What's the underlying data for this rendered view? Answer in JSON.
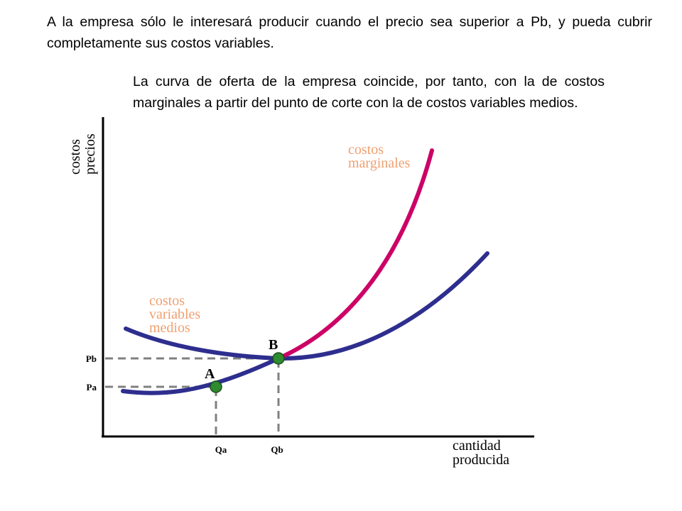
{
  "text": {
    "paragraph1": "A la empresa sólo le interesará producir cuando el precio sea superior a Pb, y pueda cubrir completamente sus costos variables.",
    "paragraph2": "La curva de oferta de la empresa coincide, por tanto, con la de costos marginales a partir del punto de corte con la de costos variables medios."
  },
  "diagram": {
    "y_axis_label": [
      "costos",
      "precios"
    ],
    "x_axis_label": [
      "cantidad",
      "producida"
    ],
    "curve_labels": {
      "marginal_cost": [
        "costos",
        "marginales"
      ],
      "average_variable_cost": [
        "costos",
        "variables",
        "medios"
      ]
    },
    "points": {
      "a": "A",
      "b": "B"
    },
    "price_ticks": {
      "pb": "Pb",
      "pa": "Pa"
    },
    "quantity_ticks": {
      "qa": "Qa",
      "qb": "Qb"
    }
  },
  "colors": {
    "curve": "#2e2e8f",
    "marginal_cost": "#cc0066",
    "label": "#f0a070",
    "point": "#2e8b2e",
    "guide": "#808080",
    "axis": "#000000"
  }
}
